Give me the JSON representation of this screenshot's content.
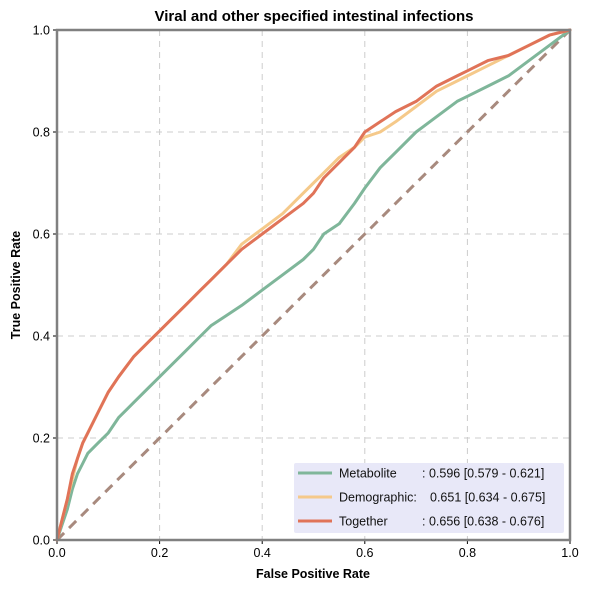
{
  "chart_data": {
    "type": "line",
    "title": "Viral and other specified intestinal infections",
    "xlabel": "False Positive Rate",
    "ylabel": "True Positive Rate",
    "xlim": [
      0,
      1
    ],
    "ylim": [
      0,
      1
    ],
    "x_ticks": [
      "0.0",
      "0.2",
      "0.4",
      "0.6",
      "0.8",
      "1.0"
    ],
    "y_ticks": [
      "0.0",
      "0.2",
      "0.4",
      "0.6",
      "0.8",
      "1.0"
    ],
    "grid": true,
    "legend_position": "bottom-right",
    "colors": {
      "metabolite": "#7fb69a",
      "demographic": "#f5c98a",
      "together": "#e07358",
      "chance": "#a88a7e",
      "frame": "#808080",
      "legend_bg": "#e8e8f8"
    },
    "series": [
      {
        "name": "Metabolite",
        "legend_name": "Metabolite",
        "legend_value": ": 0.596 [0.579 - 0.621]",
        "x": [
          0,
          0.01,
          0.02,
          0.03,
          0.04,
          0.05,
          0.06,
          0.08,
          0.1,
          0.12,
          0.15,
          0.18,
          0.2,
          0.22,
          0.25,
          0.28,
          0.3,
          0.33,
          0.36,
          0.4,
          0.44,
          0.48,
          0.5,
          0.52,
          0.55,
          0.58,
          0.6,
          0.63,
          0.66,
          0.7,
          0.74,
          0.78,
          0.8,
          0.84,
          0.88,
          0.92,
          0.96,
          1.0
        ],
        "y": [
          0,
          0.03,
          0.06,
          0.1,
          0.13,
          0.15,
          0.17,
          0.19,
          0.21,
          0.24,
          0.27,
          0.3,
          0.32,
          0.34,
          0.37,
          0.4,
          0.42,
          0.44,
          0.46,
          0.49,
          0.52,
          0.55,
          0.57,
          0.6,
          0.62,
          0.66,
          0.69,
          0.73,
          0.76,
          0.8,
          0.83,
          0.86,
          0.87,
          0.89,
          0.91,
          0.94,
          0.97,
          1.0
        ]
      },
      {
        "name": "Demographic",
        "legend_name": "Demographic:",
        "legend_value": "0.651 [0.634 - 0.675]",
        "x": [
          0,
          0.01,
          0.02,
          0.03,
          0.04,
          0.05,
          0.06,
          0.08,
          0.1,
          0.12,
          0.15,
          0.18,
          0.2,
          0.22,
          0.25,
          0.28,
          0.3,
          0.33,
          0.36,
          0.4,
          0.44,
          0.48,
          0.5,
          0.52,
          0.55,
          0.58,
          0.6,
          0.63,
          0.66,
          0.7,
          0.74,
          0.78,
          0.8,
          0.84,
          0.88,
          0.92,
          0.96,
          1.0
        ],
        "y": [
          0,
          0.04,
          0.08,
          0.12,
          0.16,
          0.19,
          0.21,
          0.25,
          0.29,
          0.32,
          0.36,
          0.39,
          0.41,
          0.43,
          0.46,
          0.49,
          0.51,
          0.54,
          0.58,
          0.61,
          0.64,
          0.68,
          0.7,
          0.72,
          0.75,
          0.77,
          0.79,
          0.8,
          0.82,
          0.85,
          0.88,
          0.9,
          0.91,
          0.93,
          0.95,
          0.97,
          0.99,
          1.0
        ]
      },
      {
        "name": "Together",
        "legend_name": "Together",
        "legend_value": ": 0.656 [0.638 - 0.676]",
        "x": [
          0,
          0.01,
          0.02,
          0.03,
          0.04,
          0.05,
          0.06,
          0.08,
          0.1,
          0.12,
          0.15,
          0.18,
          0.2,
          0.22,
          0.25,
          0.28,
          0.3,
          0.33,
          0.36,
          0.4,
          0.44,
          0.48,
          0.5,
          0.52,
          0.55,
          0.58,
          0.6,
          0.63,
          0.66,
          0.7,
          0.74,
          0.78,
          0.8,
          0.84,
          0.88,
          0.92,
          0.96,
          1.0
        ],
        "y": [
          0,
          0.04,
          0.08,
          0.13,
          0.16,
          0.19,
          0.21,
          0.25,
          0.29,
          0.32,
          0.36,
          0.39,
          0.41,
          0.43,
          0.46,
          0.49,
          0.51,
          0.54,
          0.57,
          0.6,
          0.63,
          0.66,
          0.68,
          0.71,
          0.74,
          0.77,
          0.8,
          0.82,
          0.84,
          0.86,
          0.89,
          0.91,
          0.92,
          0.94,
          0.95,
          0.97,
          0.99,
          1.0
        ]
      }
    ],
    "reference_line": {
      "x": [
        0,
        1
      ],
      "y": [
        0,
        1
      ]
    }
  }
}
